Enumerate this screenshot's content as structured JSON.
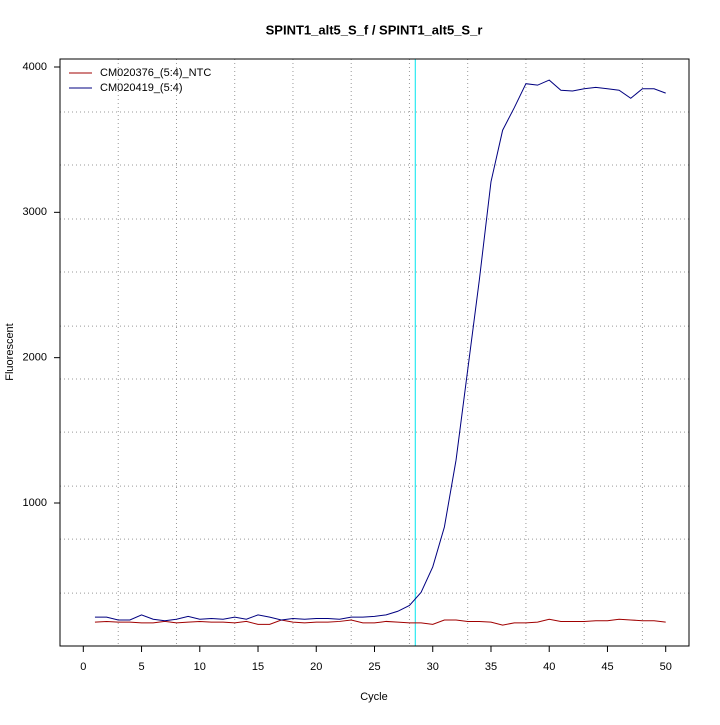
{
  "chart_data": {
    "type": "line",
    "title": "SPINT1_alt5_S_f / SPINT1_alt5_S_r",
    "x_label": "Cycle",
    "y_label": "Fluorescent",
    "x": [
      1,
      2,
      3,
      4,
      5,
      6,
      7,
      8,
      9,
      10,
      11,
      12,
      13,
      14,
      15,
      16,
      17,
      18,
      19,
      20,
      21,
      22,
      23,
      24,
      25,
      26,
      27,
      28,
      29,
      30,
      31,
      32,
      33,
      34,
      35,
      36,
      37,
      38,
      39,
      40,
      41,
      42,
      43,
      44,
      45,
      46,
      47,
      48,
      49,
      50
    ],
    "series": [
      {
        "name": "CM020376_(5:4)_NTC",
        "color": "#a00000",
        "values": [
          180,
          185,
          180,
          180,
          175,
          175,
          185,
          175,
          180,
          185,
          180,
          180,
          175,
          185,
          165,
          165,
          195,
          180,
          175,
          180,
          180,
          185,
          195,
          175,
          175,
          185,
          180,
          175,
          175,
          165,
          195,
          195,
          185,
          185,
          180,
          160,
          175,
          175,
          180,
          200,
          185,
          185,
          185,
          190,
          190,
          200,
          195,
          190,
          190,
          180
        ]
      },
      {
        "name": "CM020419_(5:4)",
        "color": "#000080",
        "values": [
          215,
          215,
          195,
          195,
          230,
          200,
          190,
          200,
          220,
          200,
          205,
          200,
          215,
          200,
          230,
          215,
          195,
          205,
          200,
          205,
          205,
          200,
          215,
          215,
          220,
          230,
          255,
          295,
          385,
          560,
          835,
          1295,
          1915,
          2535,
          3210,
          3565,
          3720,
          3885,
          3875,
          3910,
          3840,
          3835,
          3850,
          3860,
          3850,
          3840,
          3785,
          3850,
          3850,
          3820
        ]
      }
    ],
    "xlim": [
      -2,
      52
    ],
    "ylim": [
      16,
      4055
    ],
    "xticks": [
      0,
      5,
      10,
      15,
      20,
      25,
      30,
      35,
      40,
      45,
      50
    ],
    "yticks": [
      1000,
      2000,
      3000,
      4000
    ],
    "xgrid": [
      3,
      8,
      13,
      18,
      23,
      28,
      33,
      38,
      43,
      48
    ],
    "ygrid": [
      380,
      751,
      1116,
      1488,
      1853,
      2217,
      2589,
      2954,
      3326,
      3690
    ],
    "threshold_x": 28.5,
    "threshold_color": "#00e5ee",
    "legend": "top-left"
  }
}
